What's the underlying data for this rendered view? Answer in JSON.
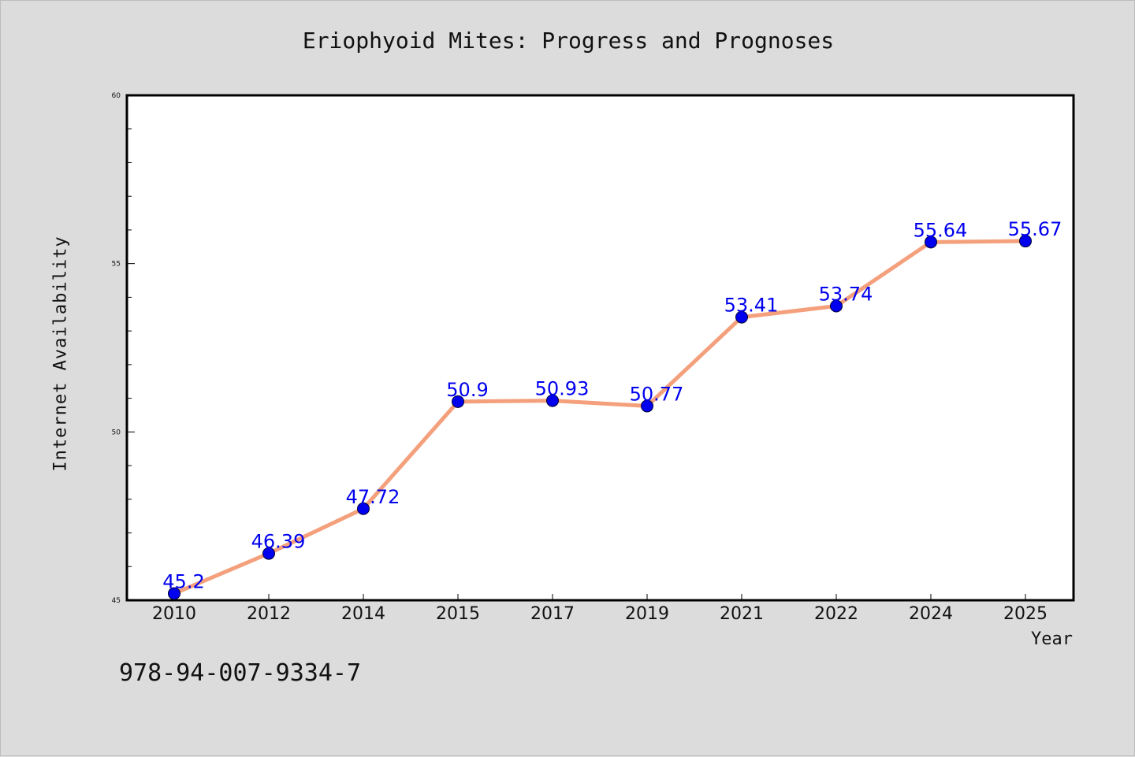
{
  "chart_data": {
    "type": "line",
    "title": "Eriophyoid Mites: Progress and Prognoses",
    "xlabel": "Year",
    "ylabel": "Internet Availability",
    "categories": [
      "2010",
      "2012",
      "2014",
      "2015",
      "2017",
      "2019",
      "2021",
      "2022",
      "2024",
      "2025"
    ],
    "series": [
      {
        "values": [
          45.2,
          46.39,
          47.72,
          50.9,
          50.93,
          50.77,
          53.41,
          53.74,
          55.64,
          55.67
        ],
        "data_labels": [
          "45.2",
          "46.39",
          "47.72",
          "50.9",
          "50.93",
          "50.77",
          "53.41",
          "53.74",
          "55.64",
          "55.67"
        ]
      }
    ],
    "ylim": [
      45,
      60
    ],
    "yticks_major": [
      "45",
      "50",
      "55",
      "60"
    ],
    "line_color": "#f4a07c",
    "marker_color": "#0000ee",
    "label_color": "#0000ee",
    "grid": false,
    "legend": "none"
  },
  "footer": {
    "isbn": "978-94-007-9334-7"
  }
}
